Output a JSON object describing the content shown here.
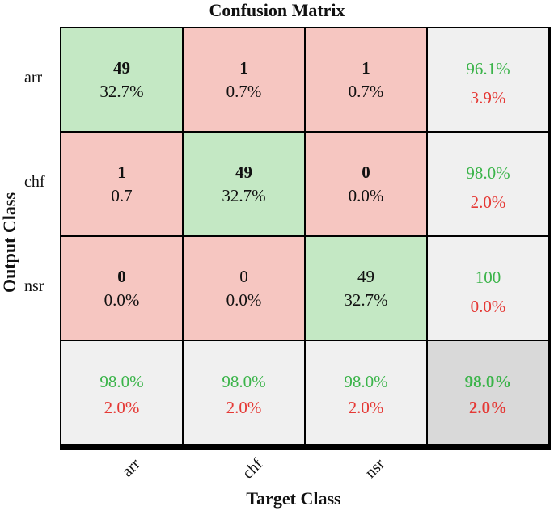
{
  "chart_data": {
    "type": "heatmap",
    "title": "Confusion Matrix",
    "xlabel": "Target Class",
    "ylabel": "Output Class",
    "row_labels": [
      "arr",
      "chf",
      "nsr"
    ],
    "col_labels": [
      "arr",
      "chf",
      "nsr"
    ],
    "counts": [
      [
        "49",
        "1",
        "1"
      ],
      [
        "1",
        "49",
        "0"
      ],
      [
        "0",
        "0",
        "49"
      ]
    ],
    "percents": [
      [
        "32.7%",
        "0.7%",
        "0.7%"
      ],
      [
        "0.7",
        "32.7%",
        "0.0%"
      ],
      [
        "0.0%",
        "0.0%",
        "32.7%"
      ]
    ],
    "row_summary": [
      {
        "correct": "96.1%",
        "error": "3.9%"
      },
      {
        "correct": "98.0%",
        "error": "2.0%"
      },
      {
        "correct": "100",
        "error": "0.0%"
      }
    ],
    "col_summary": [
      {
        "correct": "98.0%",
        "error": "2.0%"
      },
      {
        "correct": "98.0%",
        "error": "2.0%"
      },
      {
        "correct": "98.0%",
        "error": "2.0%"
      }
    ],
    "overall": {
      "correct": "98.0%",
      "error": "2.0%"
    },
    "colors": {
      "correct_cell": "#c4e8c4",
      "error_cell": "#f6c6c1",
      "summary_cell": "#f0f0f0",
      "overall_cell": "#d9d9d9",
      "correct_text": "#3bb44a",
      "error_text": "#e53935"
    }
  }
}
